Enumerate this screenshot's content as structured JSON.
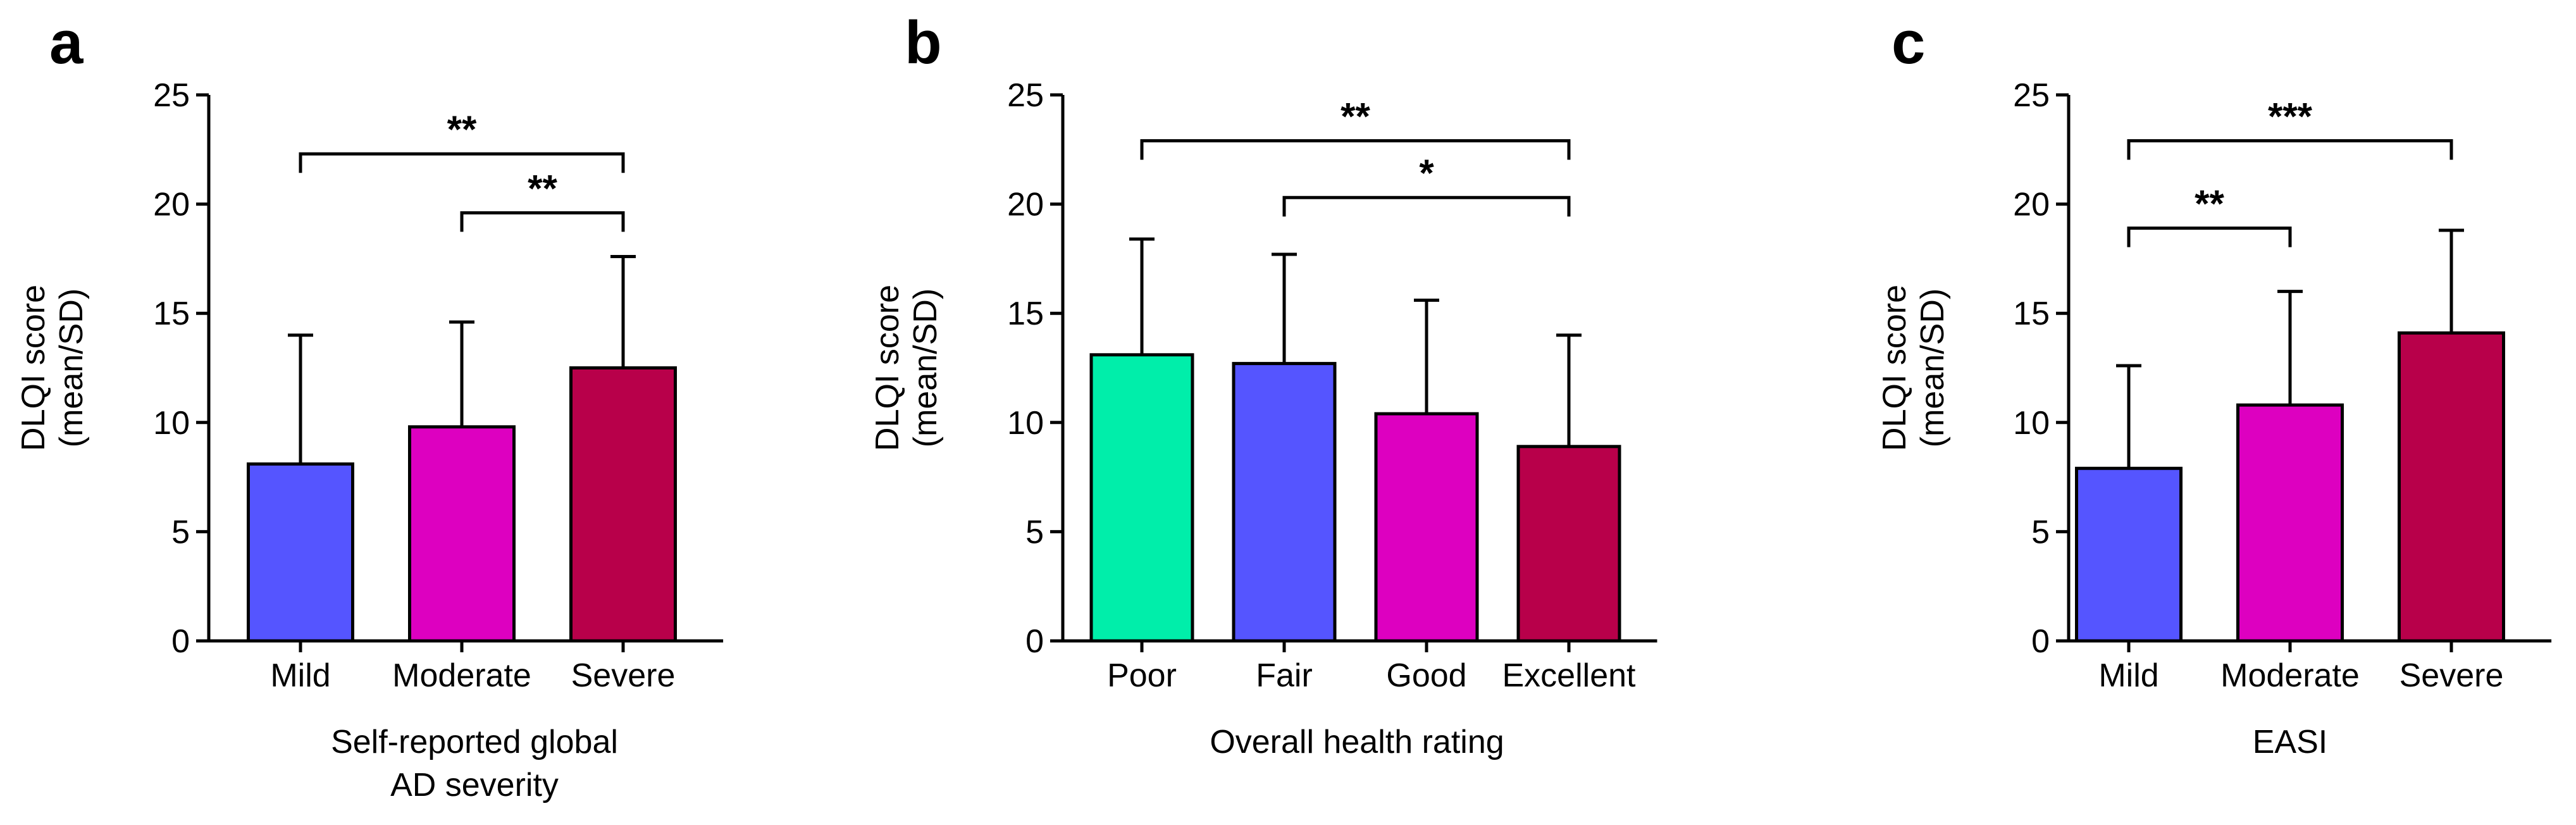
{
  "chart_data": [
    {
      "panel": "a",
      "type": "bar",
      "title": "",
      "ylabel": [
        "DLQI score",
        "(mean/SD)"
      ],
      "xlabel": [
        "Self-reported global",
        "AD severity"
      ],
      "ylim": [
        0,
        25
      ],
      "yticks": [
        0,
        5,
        10,
        15,
        20,
        25
      ],
      "categories": [
        "Mild",
        "Moderate",
        "Severe"
      ],
      "values": [
        8.1,
        9.8,
        12.5
      ],
      "sd": [
        5.9,
        4.8,
        5.1
      ],
      "colors": [
        "#5555ff",
        "#dd00c0",
        "#b8004a"
      ],
      "significance": [
        {
          "from": 0,
          "to": 2,
          "y": 22.3,
          "label": "**"
        },
        {
          "from": 1,
          "to": 2,
          "y": 19.6,
          "label": "**"
        }
      ]
    },
    {
      "panel": "b",
      "type": "bar",
      "title": "",
      "ylabel": [
        "DLQI score",
        "(mean/SD)"
      ],
      "xlabel": [
        "Overall health rating"
      ],
      "ylim": [
        0,
        25
      ],
      "yticks": [
        0,
        5,
        10,
        15,
        20,
        25
      ],
      "categories": [
        "Poor",
        "Fair",
        "Good",
        "Excellent"
      ],
      "values": [
        13.1,
        12.7,
        10.4,
        8.9
      ],
      "sd": [
        5.3,
        5.0,
        5.2,
        5.1
      ],
      "colors": [
        "#00eeaa",
        "#5555ff",
        "#dd00c0",
        "#b8004a"
      ],
      "significance": [
        {
          "from": 0,
          "to": 3,
          "y": 22.9,
          "label": "**"
        },
        {
          "from": 1,
          "to": 3,
          "y": 20.3,
          "label": "*"
        }
      ]
    },
    {
      "panel": "c",
      "type": "bar",
      "title": "",
      "ylabel": [
        "DLQI score",
        "(mean/SD)"
      ],
      "xlabel": [
        "EASI"
      ],
      "ylim": [
        0,
        25
      ],
      "yticks": [
        0,
        5,
        10,
        15,
        20,
        25
      ],
      "categories": [
        "Mild",
        "Moderate",
        "Severe"
      ],
      "values": [
        7.9,
        10.8,
        14.1
      ],
      "sd": [
        4.7,
        5.2,
        4.7
      ],
      "colors": [
        "#5555ff",
        "#dd00c0",
        "#b8004a"
      ],
      "significance": [
        {
          "from": 0,
          "to": 2,
          "y": 22.9,
          "label": "***"
        },
        {
          "from": 0,
          "to": 1,
          "y": 18.9,
          "label": "**"
        }
      ]
    }
  ]
}
